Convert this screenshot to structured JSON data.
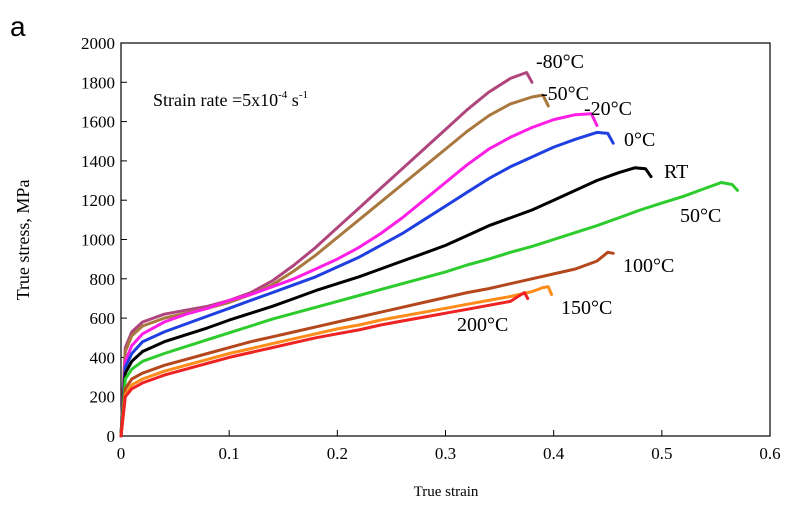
{
  "panel_label": "a",
  "chart_data": {
    "type": "line",
    "title": "",
    "xlabel": "True strain",
    "ylabel": "True stress, MPa",
    "xlim": [
      0,
      0.6
    ],
    "ylim": [
      0,
      2000
    ],
    "x_ticks": [
      "0",
      "0.1",
      "0.2",
      "0.3",
      "0.4",
      "0.5",
      "0.6"
    ],
    "y_ticks": [
      "0",
      "200",
      "400",
      "600",
      "800",
      "1000",
      "1200",
      "1400",
      "1600",
      "1800",
      "2000"
    ],
    "grid": false,
    "annotation": {
      "prefix": "Strain rate =5x10",
      "exp1": "-4",
      "mid": " s",
      "exp2": "-1"
    },
    "series": [
      {
        "name": "-80°C",
        "color": "#b0457e",
        "points": [
          [
            0,
            0
          ],
          [
            0.004,
            450
          ],
          [
            0.01,
            530
          ],
          [
            0.02,
            580
          ],
          [
            0.04,
            620
          ],
          [
            0.06,
            640
          ],
          [
            0.08,
            660
          ],
          [
            0.1,
            690
          ],
          [
            0.12,
            730
          ],
          [
            0.14,
            790
          ],
          [
            0.16,
            870
          ],
          [
            0.18,
            960
          ],
          [
            0.2,
            1060
          ],
          [
            0.22,
            1160
          ],
          [
            0.24,
            1260
          ],
          [
            0.26,
            1360
          ],
          [
            0.28,
            1460
          ],
          [
            0.3,
            1560
          ],
          [
            0.32,
            1660
          ],
          [
            0.34,
            1750
          ],
          [
            0.36,
            1820
          ],
          [
            0.375,
            1850
          ],
          [
            0.38,
            1800
          ]
        ]
      },
      {
        "name": "-50°C",
        "color": "#a8783e",
        "points": [
          [
            0,
            0
          ],
          [
            0.004,
            430
          ],
          [
            0.01,
            510
          ],
          [
            0.02,
            560
          ],
          [
            0.04,
            600
          ],
          [
            0.06,
            625
          ],
          [
            0.08,
            650
          ],
          [
            0.1,
            680
          ],
          [
            0.12,
            720
          ],
          [
            0.14,
            770
          ],
          [
            0.16,
            840
          ],
          [
            0.18,
            920
          ],
          [
            0.2,
            1010
          ],
          [
            0.22,
            1100
          ],
          [
            0.24,
            1190
          ],
          [
            0.26,
            1280
          ],
          [
            0.28,
            1370
          ],
          [
            0.3,
            1460
          ],
          [
            0.32,
            1550
          ],
          [
            0.34,
            1630
          ],
          [
            0.36,
            1690
          ],
          [
            0.38,
            1725
          ],
          [
            0.39,
            1735
          ],
          [
            0.395,
            1680
          ]
        ]
      },
      {
        "name": "-20°C",
        "color": "#ff1ee6",
        "points": [
          [
            0,
            0
          ],
          [
            0.004,
            380
          ],
          [
            0.01,
            460
          ],
          [
            0.02,
            520
          ],
          [
            0.04,
            580
          ],
          [
            0.06,
            620
          ],
          [
            0.08,
            650
          ],
          [
            0.1,
            690
          ],
          [
            0.12,
            720
          ],
          [
            0.14,
            760
          ],
          [
            0.16,
            800
          ],
          [
            0.18,
            850
          ],
          [
            0.2,
            900
          ],
          [
            0.22,
            960
          ],
          [
            0.24,
            1030
          ],
          [
            0.26,
            1110
          ],
          [
            0.28,
            1200
          ],
          [
            0.3,
            1290
          ],
          [
            0.32,
            1380
          ],
          [
            0.34,
            1460
          ],
          [
            0.36,
            1520
          ],
          [
            0.38,
            1570
          ],
          [
            0.4,
            1610
          ],
          [
            0.42,
            1635
          ],
          [
            0.435,
            1640
          ],
          [
            0.44,
            1580
          ]
        ]
      },
      {
        "name": "0°C",
        "color": "#1f3fe0",
        "points": [
          [
            0,
            0
          ],
          [
            0.004,
            350
          ],
          [
            0.01,
            420
          ],
          [
            0.02,
            480
          ],
          [
            0.04,
            530
          ],
          [
            0.06,
            570
          ],
          [
            0.08,
            610
          ],
          [
            0.1,
            650
          ],
          [
            0.12,
            690
          ],
          [
            0.14,
            730
          ],
          [
            0.16,
            770
          ],
          [
            0.18,
            810
          ],
          [
            0.2,
            860
          ],
          [
            0.22,
            910
          ],
          [
            0.24,
            970
          ],
          [
            0.26,
            1030
          ],
          [
            0.28,
            1100
          ],
          [
            0.3,
            1170
          ],
          [
            0.32,
            1240
          ],
          [
            0.34,
            1310
          ],
          [
            0.36,
            1370
          ],
          [
            0.38,
            1420
          ],
          [
            0.4,
            1470
          ],
          [
            0.42,
            1510
          ],
          [
            0.44,
            1545
          ],
          [
            0.45,
            1540
          ],
          [
            0.455,
            1490
          ]
        ]
      },
      {
        "name": "RT",
        "color": "#000000",
        "points": [
          [
            0,
            0
          ],
          [
            0.004,
            320
          ],
          [
            0.01,
            380
          ],
          [
            0.02,
            430
          ],
          [
            0.04,
            480
          ],
          [
            0.06,
            515
          ],
          [
            0.08,
            550
          ],
          [
            0.1,
            590
          ],
          [
            0.12,
            625
          ],
          [
            0.14,
            660
          ],
          [
            0.16,
            700
          ],
          [
            0.18,
            740
          ],
          [
            0.2,
            775
          ],
          [
            0.22,
            810
          ],
          [
            0.24,
            850
          ],
          [
            0.26,
            890
          ],
          [
            0.28,
            930
          ],
          [
            0.3,
            970
          ],
          [
            0.32,
            1020
          ],
          [
            0.34,
            1070
          ],
          [
            0.36,
            1110
          ],
          [
            0.38,
            1150
          ],
          [
            0.4,
            1200
          ],
          [
            0.42,
            1250
          ],
          [
            0.44,
            1300
          ],
          [
            0.46,
            1340
          ],
          [
            0.475,
            1365
          ],
          [
            0.485,
            1360
          ],
          [
            0.49,
            1320
          ]
        ]
      },
      {
        "name": "50°C",
        "color": "#2ccc2c",
        "points": [
          [
            0,
            0
          ],
          [
            0.004,
            290
          ],
          [
            0.01,
            340
          ],
          [
            0.02,
            380
          ],
          [
            0.04,
            420
          ],
          [
            0.06,
            455
          ],
          [
            0.08,
            490
          ],
          [
            0.1,
            525
          ],
          [
            0.12,
            560
          ],
          [
            0.14,
            595
          ],
          [
            0.16,
            625
          ],
          [
            0.18,
            655
          ],
          [
            0.2,
            685
          ],
          [
            0.22,
            715
          ],
          [
            0.24,
            745
          ],
          [
            0.26,
            775
          ],
          [
            0.28,
            805
          ],
          [
            0.3,
            835
          ],
          [
            0.32,
            870
          ],
          [
            0.34,
            900
          ],
          [
            0.36,
            935
          ],
          [
            0.38,
            965
          ],
          [
            0.4,
            1000
          ],
          [
            0.42,
            1035
          ],
          [
            0.44,
            1070
          ],
          [
            0.46,
            1110
          ],
          [
            0.48,
            1150
          ],
          [
            0.5,
            1185
          ],
          [
            0.52,
            1220
          ],
          [
            0.54,
            1260
          ],
          [
            0.555,
            1290
          ],
          [
            0.565,
            1280
          ],
          [
            0.57,
            1250
          ]
        ]
      },
      {
        "name": "100°C",
        "color": "#b4481c",
        "points": [
          [
            0,
            0
          ],
          [
            0.004,
            240
          ],
          [
            0.01,
            290
          ],
          [
            0.02,
            320
          ],
          [
            0.04,
            360
          ],
          [
            0.06,
            390
          ],
          [
            0.08,
            420
          ],
          [
            0.1,
            450
          ],
          [
            0.12,
            480
          ],
          [
            0.14,
            505
          ],
          [
            0.16,
            530
          ],
          [
            0.18,
            555
          ],
          [
            0.2,
            580
          ],
          [
            0.22,
            605
          ],
          [
            0.24,
            630
          ],
          [
            0.26,
            655
          ],
          [
            0.28,
            680
          ],
          [
            0.3,
            705
          ],
          [
            0.32,
            730
          ],
          [
            0.34,
            750
          ],
          [
            0.36,
            775
          ],
          [
            0.38,
            800
          ],
          [
            0.4,
            825
          ],
          [
            0.42,
            850
          ],
          [
            0.44,
            890
          ],
          [
            0.45,
            935
          ],
          [
            0.455,
            930
          ]
        ]
      },
      {
        "name": "150°C",
        "color": "#ff8c1a",
        "points": [
          [
            0,
            0
          ],
          [
            0.004,
            210
          ],
          [
            0.01,
            260
          ],
          [
            0.02,
            290
          ],
          [
            0.04,
            330
          ],
          [
            0.06,
            360
          ],
          [
            0.08,
            390
          ],
          [
            0.1,
            420
          ],
          [
            0.12,
            445
          ],
          [
            0.14,
            470
          ],
          [
            0.16,
            495
          ],
          [
            0.18,
            520
          ],
          [
            0.2,
            545
          ],
          [
            0.22,
            565
          ],
          [
            0.24,
            590
          ],
          [
            0.26,
            610
          ],
          [
            0.28,
            630
          ],
          [
            0.3,
            650
          ],
          [
            0.32,
            670
          ],
          [
            0.34,
            690
          ],
          [
            0.36,
            710
          ],
          [
            0.38,
            735
          ],
          [
            0.39,
            755
          ],
          [
            0.395,
            760
          ],
          [
            0.398,
            720
          ]
        ]
      },
      {
        "name": "200°C",
        "color": "#ee2222",
        "points": [
          [
            0,
            0
          ],
          [
            0.004,
            200
          ],
          [
            0.01,
            240
          ],
          [
            0.02,
            270
          ],
          [
            0.04,
            310
          ],
          [
            0.06,
            340
          ],
          [
            0.08,
            370
          ],
          [
            0.1,
            400
          ],
          [
            0.12,
            425
          ],
          [
            0.14,
            450
          ],
          [
            0.16,
            475
          ],
          [
            0.18,
            500
          ],
          [
            0.2,
            520
          ],
          [
            0.22,
            540
          ],
          [
            0.24,
            565
          ],
          [
            0.26,
            585
          ],
          [
            0.28,
            605
          ],
          [
            0.3,
            625
          ],
          [
            0.32,
            645
          ],
          [
            0.34,
            665
          ],
          [
            0.36,
            685
          ],
          [
            0.37,
            720
          ],
          [
            0.373,
            730
          ],
          [
            0.376,
            700
          ]
        ]
      }
    ]
  }
}
